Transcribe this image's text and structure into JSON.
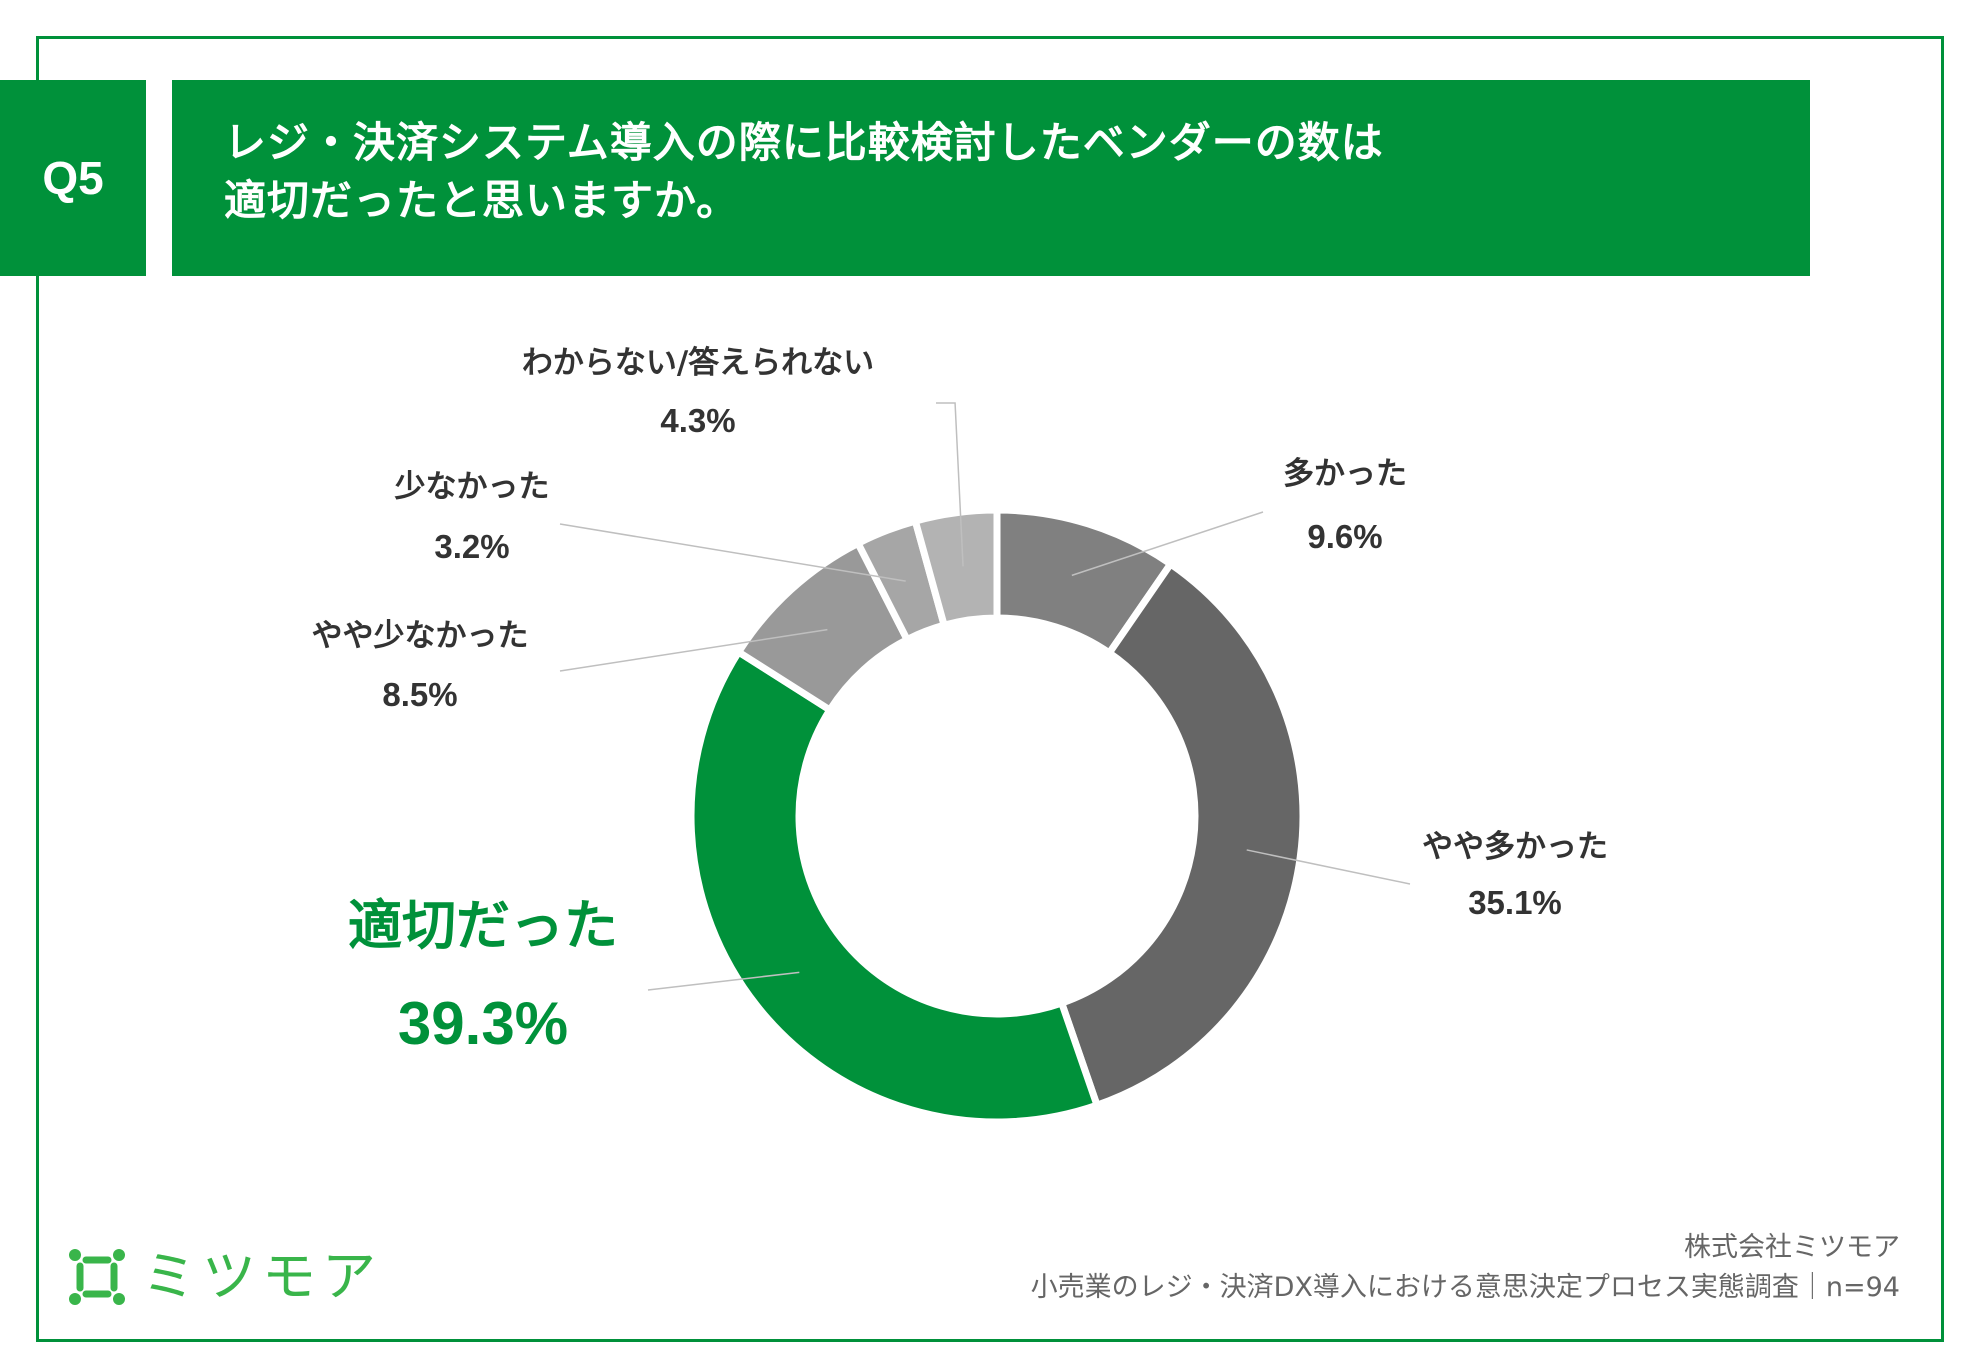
{
  "header": {
    "badge": "Q5",
    "question_line1": "レジ・決済システム導入の際に比較検討したベンダーの数は",
    "question_line2": "適切だったと思いますか。"
  },
  "chart_data": {
    "type": "pie",
    "donut": true,
    "slices": [
      {
        "label": "多かった",
        "value": 9.6,
        "display": "9.6%",
        "color": "#808080"
      },
      {
        "label": "やや多かった",
        "value": 35.1,
        "display": "35.1%",
        "color": "#666666"
      },
      {
        "label": "適切だった",
        "value": 39.3,
        "display": "39.3%",
        "color": "#00913a",
        "highlight": true
      },
      {
        "label": "やや少なかった",
        "value": 8.5,
        "display": "8.5%",
        "color": "#999999"
      },
      {
        "label": "少なかった",
        "value": 3.2,
        "display": "3.2%",
        "color": "#a6a6a6"
      },
      {
        "label": "わからない/答えられない",
        "value": 4.3,
        "display": "4.3%",
        "color": "#b3b3b3"
      }
    ]
  },
  "footer": {
    "logo_text": "ミツモア",
    "company": "株式会社ミツモア",
    "survey": "小売業のレジ・決済DX導入における意思決定プロセス実態調査｜n=94"
  },
  "colors": {
    "brand": "#00913a",
    "logo": "#39b54a"
  }
}
